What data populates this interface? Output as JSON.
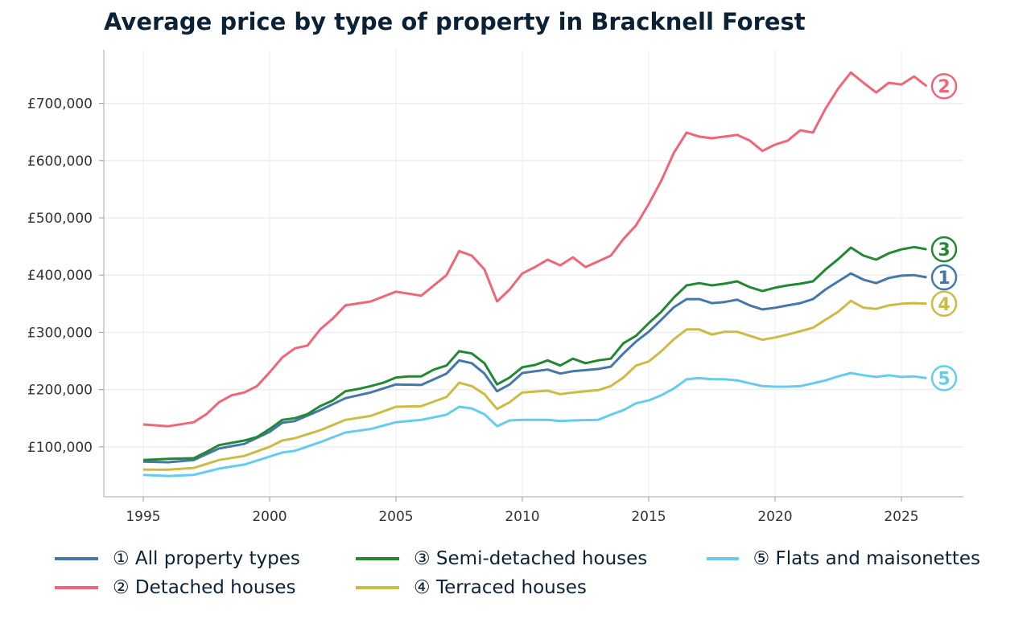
{
  "chart_data": {
    "type": "line",
    "title": "Average price by type of property in Bracknell Forest",
    "xlabel": "",
    "ylabel": "",
    "xlim": [
      1993.5,
      2027.2
    ],
    "ylim": [
      10000,
      790000
    ],
    "x_ticks": [
      1995,
      2000,
      2005,
      2010,
      2015,
      2020,
      2025
    ],
    "y_ticks": [
      100000,
      200000,
      300000,
      400000,
      500000,
      600000,
      700000
    ],
    "y_tick_labels": [
      "£100,000",
      "£200,000",
      "£300,000",
      "£400,000",
      "£500,000",
      "£600,000",
      "£700,000"
    ],
    "grid": true,
    "legend_placement": "bottom",
    "series": [
      {
        "name": "① All property types",
        "end_label": "1",
        "color": "#4477aa",
        "points": [
          [
            1995,
            74000
          ],
          [
            1996,
            73000
          ],
          [
            1997,
            77000
          ],
          [
            1998,
            97000
          ],
          [
            1999,
            105000
          ],
          [
            2000,
            126000
          ],
          [
            2000.5,
            142000
          ],
          [
            2001,
            145000
          ],
          [
            2002,
            164000
          ],
          [
            2003,
            185000
          ],
          [
            2004,
            195000
          ],
          [
            2005,
            209000
          ],
          [
            2006,
            208000
          ],
          [
            2007,
            228000
          ],
          [
            2007.5,
            251000
          ],
          [
            2008,
            246000
          ],
          [
            2008.5,
            228000
          ],
          [
            2009,
            197000
          ],
          [
            2009.5,
            209000
          ],
          [
            2010,
            229000
          ],
          [
            2011,
            235000
          ],
          [
            2011.5,
            228000
          ],
          [
            2012,
            232000
          ],
          [
            2013,
            236000
          ],
          [
            2013.5,
            240000
          ],
          [
            2014,
            263000
          ],
          [
            2014.5,
            284000
          ],
          [
            2015,
            301000
          ],
          [
            2015.5,
            322000
          ],
          [
            2016,
            344000
          ],
          [
            2016.5,
            358000
          ],
          [
            2017,
            358000
          ],
          [
            2017.5,
            351000
          ],
          [
            2018,
            353000
          ],
          [
            2018.5,
            357000
          ],
          [
            2019,
            347000
          ],
          [
            2019.5,
            340000
          ],
          [
            2020,
            343000
          ],
          [
            2020.5,
            347000
          ],
          [
            2021,
            351000
          ],
          [
            2021.5,
            358000
          ],
          [
            2022,
            375000
          ],
          [
            2022.5,
            389000
          ],
          [
            2023,
            403000
          ],
          [
            2023.5,
            392000
          ],
          [
            2024,
            386000
          ],
          [
            2024.5,
            395000
          ],
          [
            2025,
            399000
          ],
          [
            2025.5,
            400000
          ],
          [
            2026,
            396000
          ]
        ]
      },
      {
        "name": "② Detached houses",
        "end_label": "2",
        "color": "#ee6677",
        "points": [
          [
            1995,
            139000
          ],
          [
            1996,
            136000
          ],
          [
            1997,
            143000
          ],
          [
            1997.5,
            157000
          ],
          [
            1998,
            178000
          ],
          [
            1998.5,
            190000
          ],
          [
            1999,
            195000
          ],
          [
            1999.5,
            206000
          ],
          [
            2000,
            230000
          ],
          [
            2000.5,
            256000
          ],
          [
            2001,
            272000
          ],
          [
            2001.5,
            277000
          ],
          [
            2002,
            305000
          ],
          [
            2002.5,
            324000
          ],
          [
            2003,
            347000
          ],
          [
            2004,
            354000
          ],
          [
            2005,
            371000
          ],
          [
            2006,
            364000
          ],
          [
            2006.5,
            382000
          ],
          [
            2007,
            400000
          ],
          [
            2007.5,
            442000
          ],
          [
            2008,
            434000
          ],
          [
            2008.5,
            410000
          ],
          [
            2009,
            354000
          ],
          [
            2009.5,
            375000
          ],
          [
            2010,
            403000
          ],
          [
            2010.5,
            414000
          ],
          [
            2011,
            427000
          ],
          [
            2011.5,
            417000
          ],
          [
            2012,
            431000
          ],
          [
            2012.5,
            414000
          ],
          [
            2013,
            424000
          ],
          [
            2013.5,
            434000
          ],
          [
            2014,
            463000
          ],
          [
            2014.5,
            487000
          ],
          [
            2015,
            524000
          ],
          [
            2015.5,
            565000
          ],
          [
            2016,
            614000
          ],
          [
            2016.5,
            649000
          ],
          [
            2017,
            642000
          ],
          [
            2017.5,
            639000
          ],
          [
            2018,
            642000
          ],
          [
            2018.5,
            645000
          ],
          [
            2019,
            635000
          ],
          [
            2019.5,
            617000
          ],
          [
            2020,
            628000
          ],
          [
            2020.5,
            635000
          ],
          [
            2021,
            653000
          ],
          [
            2021.5,
            649000
          ],
          [
            2022,
            691000
          ],
          [
            2022.5,
            726000
          ],
          [
            2023,
            754000
          ],
          [
            2023.5,
            736000
          ],
          [
            2024,
            719000
          ],
          [
            2024.5,
            736000
          ],
          [
            2025,
            733000
          ],
          [
            2025.5,
            747000
          ],
          [
            2026,
            730000
          ]
        ]
      },
      {
        "name": "③ Semi-detached houses",
        "end_label": "3",
        "color": "#228833",
        "points": [
          [
            1995,
            77000
          ],
          [
            1996,
            79000
          ],
          [
            1997,
            80000
          ],
          [
            1997.5,
            91000
          ],
          [
            1998,
            103000
          ],
          [
            1999,
            111000
          ],
          [
            1999.5,
            117000
          ],
          [
            2000,
            131000
          ],
          [
            2000.5,
            147000
          ],
          [
            2001,
            150000
          ],
          [
            2001.5,
            157000
          ],
          [
            2002,
            171000
          ],
          [
            2002.5,
            181000
          ],
          [
            2003,
            197000
          ],
          [
            2003.5,
            201000
          ],
          [
            2004,
            206000
          ],
          [
            2004.5,
            212000
          ],
          [
            2005,
            221000
          ],
          [
            2005.5,
            223000
          ],
          [
            2006,
            223000
          ],
          [
            2006.5,
            235000
          ],
          [
            2007,
            242000
          ],
          [
            2007.5,
            267000
          ],
          [
            2008,
            263000
          ],
          [
            2008.5,
            246000
          ],
          [
            2009,
            209000
          ],
          [
            2009.5,
            221000
          ],
          [
            2010,
            239000
          ],
          [
            2010.5,
            243000
          ],
          [
            2011,
            251000
          ],
          [
            2011.5,
            242000
          ],
          [
            2012,
            254000
          ],
          [
            2012.5,
            246000
          ],
          [
            2013,
            251000
          ],
          [
            2013.5,
            254000
          ],
          [
            2014,
            281000
          ],
          [
            2014.5,
            294000
          ],
          [
            2015,
            316000
          ],
          [
            2015.5,
            336000
          ],
          [
            2016,
            361000
          ],
          [
            2016.5,
            382000
          ],
          [
            2017,
            386000
          ],
          [
            2017.5,
            382000
          ],
          [
            2018,
            385000
          ],
          [
            2018.5,
            389000
          ],
          [
            2019,
            379000
          ],
          [
            2019.5,
            372000
          ],
          [
            2020,
            378000
          ],
          [
            2020.5,
            382000
          ],
          [
            2021,
            385000
          ],
          [
            2021.5,
            389000
          ],
          [
            2022,
            410000
          ],
          [
            2022.5,
            428000
          ],
          [
            2023,
            448000
          ],
          [
            2023.5,
            434000
          ],
          [
            2024,
            427000
          ],
          [
            2024.5,
            438000
          ],
          [
            2025,
            445000
          ],
          [
            2025.5,
            449000
          ],
          [
            2026,
            445000
          ]
        ]
      },
      {
        "name": "④ Terraced houses",
        "end_label": "4",
        "color": "#ccbb44",
        "points": [
          [
            1995,
            60000
          ],
          [
            1996,
            60000
          ],
          [
            1997,
            63000
          ],
          [
            1998,
            77000
          ],
          [
            1999,
            84000
          ],
          [
            2000,
            100000
          ],
          [
            2000.5,
            111000
          ],
          [
            2001,
            115000
          ],
          [
            2002,
            129000
          ],
          [
            2003,
            147000
          ],
          [
            2004,
            154000
          ],
          [
            2005,
            170000
          ],
          [
            2006,
            171000
          ],
          [
            2007,
            187000
          ],
          [
            2007.5,
            212000
          ],
          [
            2008,
            206000
          ],
          [
            2008.5,
            192000
          ],
          [
            2009,
            166000
          ],
          [
            2009.5,
            178000
          ],
          [
            2010,
            195000
          ],
          [
            2011,
            198000
          ],
          [
            2011.5,
            192000
          ],
          [
            2012,
            195000
          ],
          [
            2013,
            199000
          ],
          [
            2013.5,
            206000
          ],
          [
            2014,
            221000
          ],
          [
            2014.5,
            242000
          ],
          [
            2015,
            249000
          ],
          [
            2015.5,
            267000
          ],
          [
            2016,
            288000
          ],
          [
            2016.5,
            305000
          ],
          [
            2017,
            305000
          ],
          [
            2017.5,
            296000
          ],
          [
            2018,
            301000
          ],
          [
            2018.5,
            301000
          ],
          [
            2019,
            294000
          ],
          [
            2019.5,
            287000
          ],
          [
            2020,
            291000
          ],
          [
            2020.5,
            296000
          ],
          [
            2021,
            302000
          ],
          [
            2021.5,
            308000
          ],
          [
            2022,
            322000
          ],
          [
            2022.5,
            336000
          ],
          [
            2023,
            355000
          ],
          [
            2023.5,
            343000
          ],
          [
            2024,
            341000
          ],
          [
            2024.5,
            347000
          ],
          [
            2025,
            350000
          ],
          [
            2025.5,
            351000
          ],
          [
            2026,
            350000
          ]
        ]
      },
      {
        "name": "⑤ Flats and maisonettes",
        "end_label": "5",
        "color": "#66ccee",
        "points": [
          [
            1995,
            51000
          ],
          [
            1996,
            49000
          ],
          [
            1997,
            51000
          ],
          [
            1998,
            62000
          ],
          [
            1999,
            69000
          ],
          [
            2000,
            83000
          ],
          [
            2000.5,
            90000
          ],
          [
            2001,
            93000
          ],
          [
            2002,
            108000
          ],
          [
            2003,
            125000
          ],
          [
            2004,
            131000
          ],
          [
            2005,
            143000
          ],
          [
            2006,
            147000
          ],
          [
            2007,
            156000
          ],
          [
            2007.5,
            170000
          ],
          [
            2008,
            167000
          ],
          [
            2008.5,
            157000
          ],
          [
            2009,
            136000
          ],
          [
            2009.5,
            146000
          ],
          [
            2010,
            147000
          ],
          [
            2011,
            147000
          ],
          [
            2011.5,
            145000
          ],
          [
            2012,
            146000
          ],
          [
            2013,
            147000
          ],
          [
            2013.5,
            156000
          ],
          [
            2014,
            164000
          ],
          [
            2014.5,
            176000
          ],
          [
            2015,
            181000
          ],
          [
            2015.5,
            190000
          ],
          [
            2016,
            202000
          ],
          [
            2016.5,
            218000
          ],
          [
            2017,
            220000
          ],
          [
            2017.5,
            218000
          ],
          [
            2018,
            218000
          ],
          [
            2018.5,
            216000
          ],
          [
            2019,
            211000
          ],
          [
            2019.5,
            206000
          ],
          [
            2020,
            205000
          ],
          [
            2020.5,
            205000
          ],
          [
            2021,
            206000
          ],
          [
            2021.5,
            211000
          ],
          [
            2022,
            216000
          ],
          [
            2022.5,
            223000
          ],
          [
            2023,
            229000
          ],
          [
            2023.5,
            225000
          ],
          [
            2024,
            222000
          ],
          [
            2024.5,
            225000
          ],
          [
            2025,
            222000
          ],
          [
            2025.5,
            223000
          ],
          [
            2026,
            220000
          ]
        ]
      }
    ]
  }
}
